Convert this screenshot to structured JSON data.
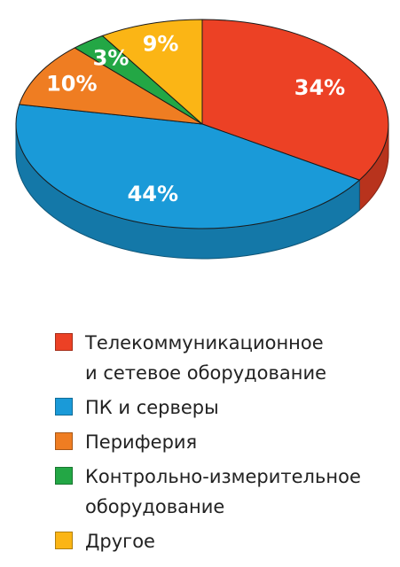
{
  "chart_data": {
    "type": "pie",
    "title": "",
    "slices": [
      {
        "name": "Телекоммуникационное и сетевое оборудование",
        "value": 34,
        "label": "34%",
        "color": "#ec4125"
      },
      {
        "name": "ПК и серверы",
        "value": 44,
        "label": "44%",
        "color": "#1a9ad8"
      },
      {
        "name": "Периферия",
        "value": 10,
        "label": "10%",
        "color": "#ef7d22"
      },
      {
        "name": "Контрольно-измерительное оборудование",
        "value": 3,
        "label": "3%",
        "color": "#23a745"
      },
      {
        "name": "Другое",
        "value": 9,
        "label": "9%",
        "color": "#fbb515"
      }
    ],
    "legend_position": "bottom"
  },
  "legend": {
    "items": [
      {
        "lines": [
          "Телекоммуникационное",
          "и сетевое оборудование"
        ],
        "color": "#ec4125"
      },
      {
        "lines": [
          "ПК и серверы"
        ],
        "color": "#1a9ad8"
      },
      {
        "lines": [
          "Периферия"
        ],
        "color": "#ef7d22"
      },
      {
        "lines": [
          "Контрольно-измерительное",
          "оборудование"
        ],
        "color": "#23a745"
      },
      {
        "lines": [
          "Другое"
        ],
        "color": "#fbb515"
      }
    ]
  }
}
